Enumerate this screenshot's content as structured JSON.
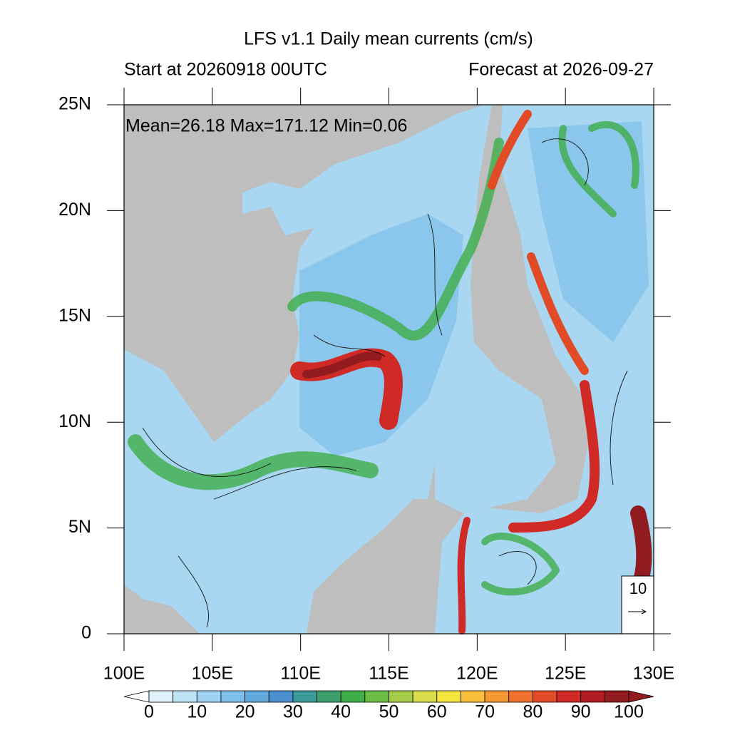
{
  "title": "LFS v1.1 Daily mean currents (cm/s)",
  "left_subtitle": "Start at 20260918 00UTC",
  "right_subtitle": "Forecast at 2026-09-27",
  "stats": "Mean=26.18  Max=171.12  Min=0.06",
  "map": {
    "xlim": [
      100,
      130
    ],
    "ylim": [
      0,
      25
    ],
    "xticks": [
      {
        "value": 100,
        "label": "100E"
      },
      {
        "value": 105,
        "label": "105E"
      },
      {
        "value": 110,
        "label": "110E"
      },
      {
        "value": 115,
        "label": "115E"
      },
      {
        "value": 120,
        "label": "120E"
      },
      {
        "value": 125,
        "label": "125E"
      },
      {
        "value": 130,
        "label": "130E"
      }
    ],
    "yticks": [
      0,
      {
        "value": 5,
        "label": "5N"
      },
      {
        "value": 10,
        "label": "10N"
      },
      {
        "value": 15,
        "label": "15N"
      },
      {
        "value": 20,
        "label": "20N"
      },
      {
        "value": 25,
        "label": "25N"
      }
    ],
    "land_color": "#bebebe"
  },
  "reference_vector": 10,
  "colorbar": {
    "range": [
      0,
      100
    ],
    "ticks": [
      0,
      10,
      20,
      30,
      40,
      50,
      60,
      70,
      80,
      90,
      100
    ],
    "under_color": "#ffffff",
    "over_color": "#911b1f",
    "colors": [
      "#dff2fc",
      "#bfe3f6",
      "#9fd3f1",
      "#7fc0ea",
      "#62a9de",
      "#4b8fcf",
      "#3a9a9a",
      "#3c9e6c",
      "#3fae48",
      "#6cbd45",
      "#a6cb49",
      "#d9dd4c",
      "#f7e53f",
      "#f9bf3a",
      "#f59a33",
      "#ef712d",
      "#e24b27",
      "#cf2a25",
      "#b11d24",
      "#911b1f"
    ]
  }
}
